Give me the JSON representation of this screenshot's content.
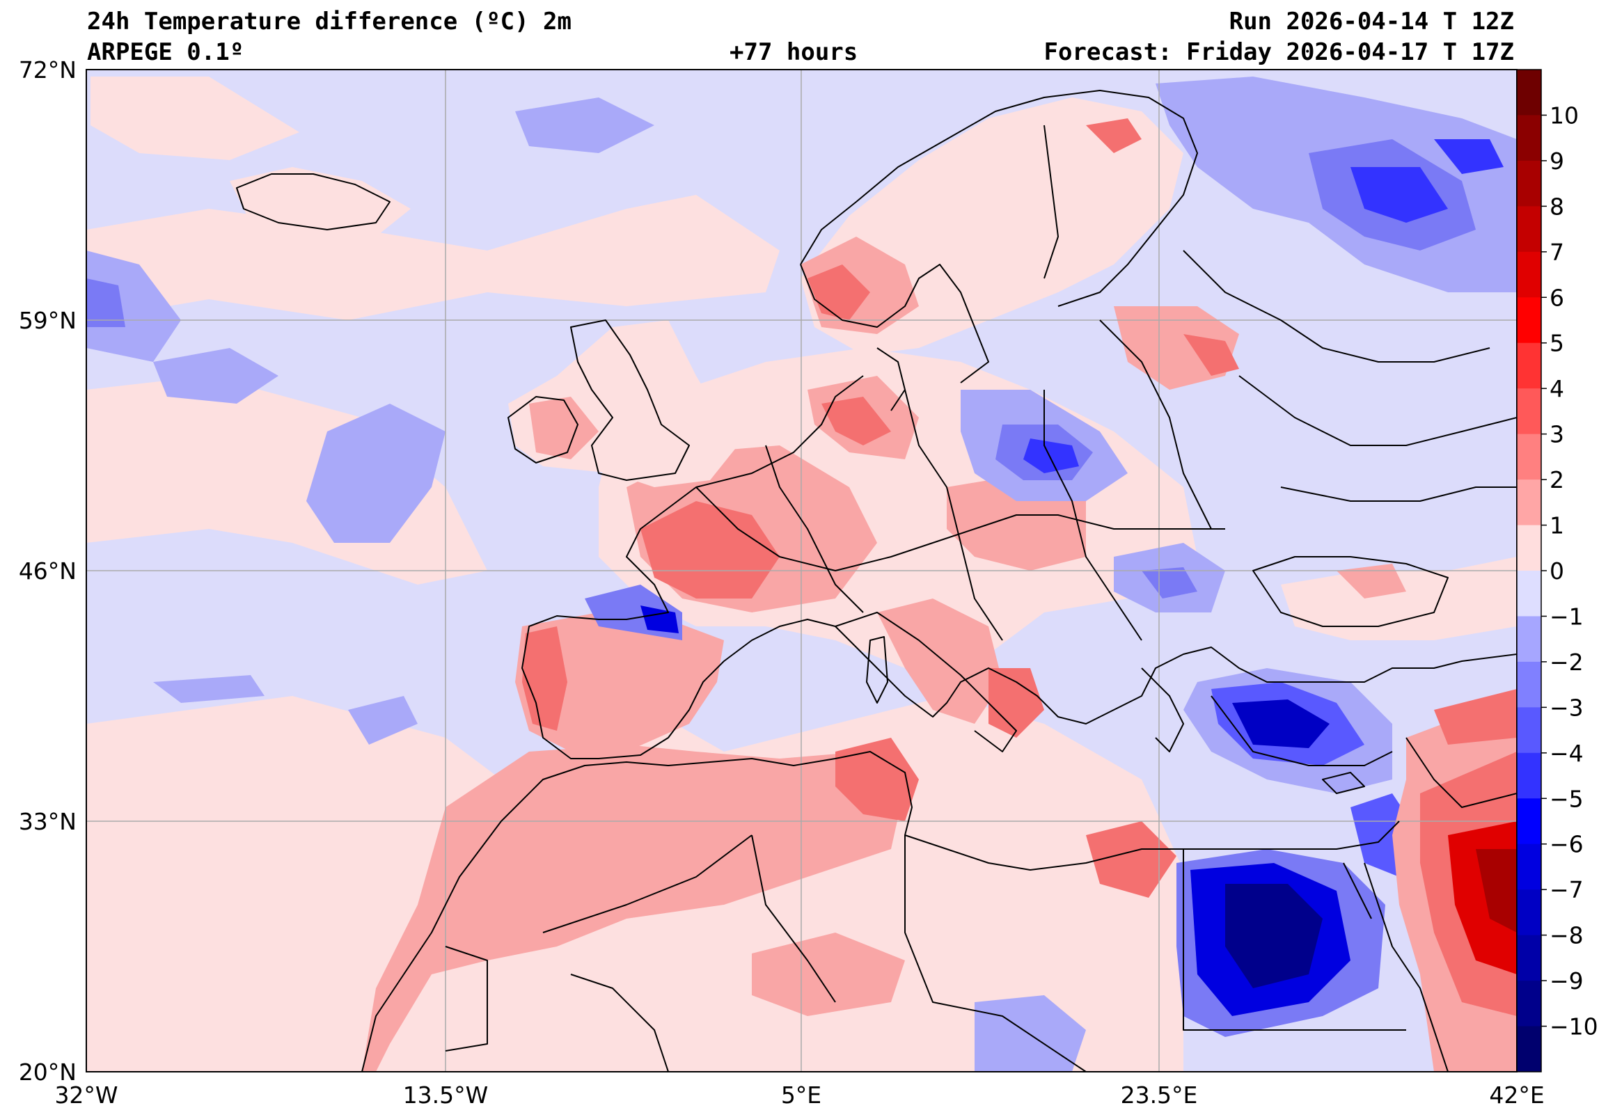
{
  "header": {
    "title": "24h Temperature difference (ºC) 2m",
    "model": "ARPEGE 0.1º",
    "lead": "+77 hours",
    "run": "Run 2026-04-14 T 12Z",
    "forecast": "Forecast: Friday 2026-04-17 T 17Z"
  },
  "axes": {
    "lat_ticks": [
      "72°N",
      "59°N",
      "46°N",
      "33°N",
      "20°N"
    ],
    "lon_ticks": [
      "32°W",
      "13.5°W",
      "5°E",
      "23.5°E",
      "42°E"
    ]
  },
  "colorbar": {
    "ticks": [
      "10",
      "9",
      "8",
      "7",
      "6",
      "5",
      "4",
      "3",
      "2",
      "1",
      "0",
      "−1",
      "−2",
      "−3",
      "−4",
      "−5",
      "−6",
      "−7",
      "−8",
      "−9",
      "−10"
    ],
    "colors": [
      "#6e0000",
      "#8b0000",
      "#a80000",
      "#c40000",
      "#e00000",
      "#ff0000",
      "#ff3333",
      "#ff5959",
      "#ff8080",
      "#ffa6a6",
      "#ffdede",
      "#dedeff",
      "#a6a6ff",
      "#8080ff",
      "#5959ff",
      "#3333ff",
      "#0000ff",
      "#0000e0",
      "#0000c4",
      "#0000a8",
      "#00008b",
      "#00006e"
    ],
    "colors_note": "22 bins from >10 (top) to < -10 (bottom)"
  },
  "palette": {
    "ocean_neutral_cool": "#dcdcfb",
    "neutral_warm": "#fde0e0",
    "light_blue": "#a9a9f9",
    "mid_blue": "#7a7af5",
    "light_red": "#f9a6a6",
    "mid_red": "#f47070",
    "deep_blue": "#0b0bb0",
    "deep_red": "#c00000",
    "border": "#000000",
    "grid": "#aaaaaa"
  }
}
